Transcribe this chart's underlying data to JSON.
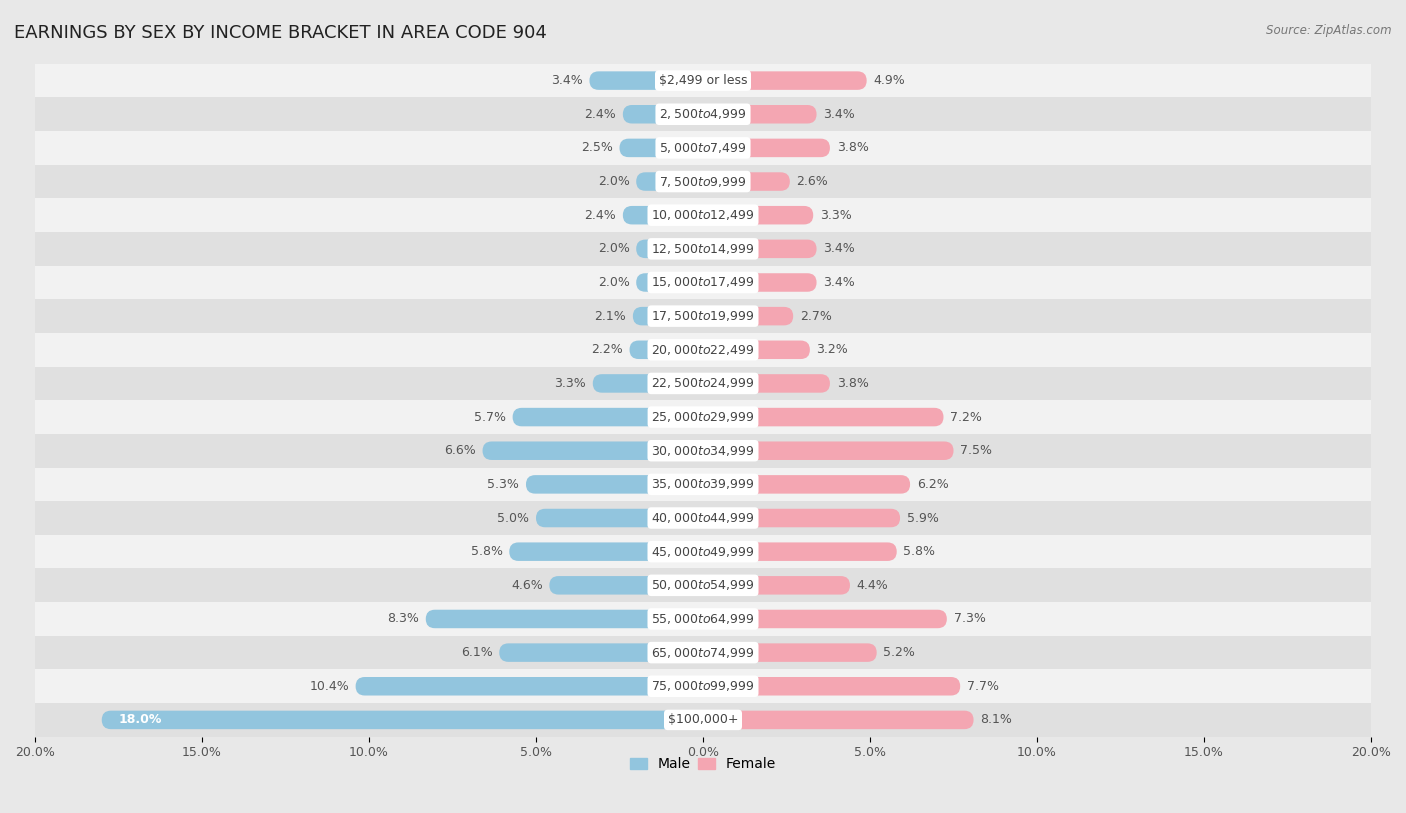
{
  "title": "EARNINGS BY SEX BY INCOME BRACKET IN AREA CODE 904",
  "source": "Source: ZipAtlas.com",
  "categories": [
    "$2,499 or less",
    "$2,500 to $4,999",
    "$5,000 to $7,499",
    "$7,500 to $9,999",
    "$10,000 to $12,499",
    "$12,500 to $14,999",
    "$15,000 to $17,499",
    "$17,500 to $19,999",
    "$20,000 to $22,499",
    "$22,500 to $24,999",
    "$25,000 to $29,999",
    "$30,000 to $34,999",
    "$35,000 to $39,999",
    "$40,000 to $44,999",
    "$45,000 to $49,999",
    "$50,000 to $54,999",
    "$55,000 to $64,999",
    "$65,000 to $74,999",
    "$75,000 to $99,999",
    "$100,000+"
  ],
  "male_values": [
    3.4,
    2.4,
    2.5,
    2.0,
    2.4,
    2.0,
    2.0,
    2.1,
    2.2,
    3.3,
    5.7,
    6.6,
    5.3,
    5.0,
    5.8,
    4.6,
    8.3,
    6.1,
    10.4,
    18.0
  ],
  "female_values": [
    4.9,
    3.4,
    3.8,
    2.6,
    3.3,
    3.4,
    3.4,
    2.7,
    3.2,
    3.8,
    7.2,
    7.5,
    6.2,
    5.9,
    5.8,
    4.4,
    7.3,
    5.2,
    7.7,
    8.1
  ],
  "male_color": "#92c5de",
  "female_color": "#f4a6b2",
  "background_color": "#e8e8e8",
  "row_color_even": "#f2f2f2",
  "row_color_odd": "#e0e0e0",
  "axis_limit": 20.0,
  "bar_height": 0.55,
  "title_fontsize": 13,
  "label_fontsize": 9,
  "category_fontsize": 9,
  "tick_fontsize": 9
}
